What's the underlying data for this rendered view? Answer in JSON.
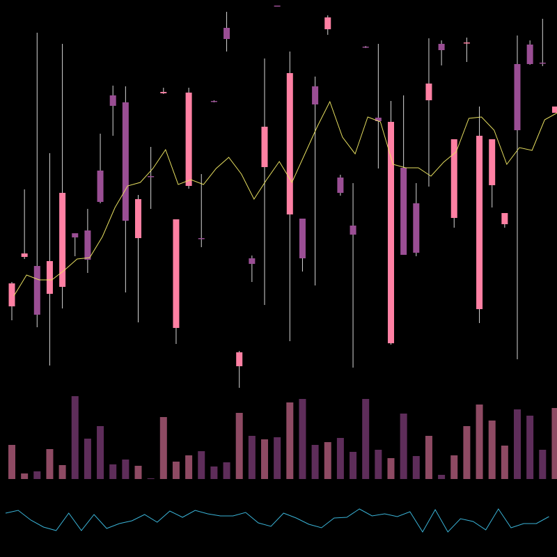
{
  "chart_data": {
    "type": "candlestick",
    "open": [
      360,
      431,
      418,
      378,
      388,
      465,
      469,
      555,
      663,
      653,
      458,
      547,
      666,
      329,
      533,
      458,
      655,
      760,
      274,
      429,
      560,
      792,
      492,
      486,
      676,
      758,
      545,
      476,
      733,
      631,
      307,
      559,
      508,
      656,
      737,
      487,
      738,
      356,
      534,
      478,
      708,
      736,
      710,
      638
    ],
    "high": [
      395,
      528,
      753,
      580,
      737,
      465,
      500,
      608,
      677,
      676,
      520,
      589,
      674,
      485,
      674,
      550,
      656,
      783,
      296,
      433,
      716,
      792,
      726,
      486,
      690,
      778,
      549,
      537,
      734,
      737,
      655,
      663,
      537,
      745,
      742,
      600,
      746,
      647,
      600,
      494,
      749,
      742,
      773,
      647
    ],
    "low": [
      340,
      428,
      330,
      275,
      357,
      432,
      408,
      508,
      605,
      380,
      337,
      500,
      665,
      306,
      529,
      445,
      653,
      726,
      243,
      395,
      362,
      791,
      310,
      410,
      390,
      750,
      519,
      272,
      731,
      558,
      305,
      434,
      432,
      532,
      706,
      473,
      711,
      336,
      502,
      473,
      284,
      707,
      705,
      638
    ],
    "close": [
      393,
      436,
      348,
      425,
      523,
      459,
      427,
      510,
      648,
      483,
      514,
      546,
      668,
      485,
      667,
      457,
      654,
      744,
      294,
      421,
      618,
      791,
      695,
      429,
      650,
      775,
      523,
      463,
      732,
      626,
      625,
      434,
      437,
      680,
      728,
      600,
      739,
      605,
      600,
      494,
      613,
      708,
      709,
      647
    ],
    "up_color": "#ff80a3",
    "down_color": "#9a4e94",
    "ylim": [
      0,
      800
    ],
    "ma": {
      "color": "#e8e060",
      "values": [
        375,
        405,
        398,
        398,
        412,
        428,
        430,
        460,
        502,
        533,
        538,
        558,
        585,
        535,
        542,
        535,
        558,
        574,
        550,
        514,
        542,
        568,
        538,
        578,
        618,
        654,
        603,
        579,
        632,
        625,
        564,
        559,
        559,
        547,
        567,
        582,
        630,
        632,
        613,
        564,
        588,
        584,
        628,
        638
      ]
    },
    "volume": {
      "values": [
        49,
        8,
        11,
        43,
        20,
        119,
        58,
        76,
        21,
        28,
        19,
        1,
        89,
        25,
        34,
        40,
        18,
        24,
        95,
        62,
        57,
        60,
        110,
        115,
        49,
        53,
        59,
        39,
        115,
        42,
        30,
        94,
        33,
        62,
        6,
        34,
        76,
        107,
        84,
        48,
        100,
        91,
        42,
        102
      ],
      "ylim": [
        0,
        120
      ],
      "up_color": "#8e4a63",
      "down_color": "#5e2d5a"
    },
    "indicator": {
      "color": "#3ab4d8",
      "values": [
        63,
        67,
        53,
        43,
        38,
        63,
        38,
        61,
        41,
        48,
        52,
        61,
        50,
        66,
        57,
        67,
        62,
        59,
        59,
        64,
        49,
        44,
        63,
        56,
        47,
        42,
        56,
        57,
        69,
        59,
        62,
        58,
        65,
        36,
        68,
        36,
        55,
        51,
        39,
        69,
        42,
        48,
        48,
        58
      ],
      "ylim": [
        0,
        100
      ]
    }
  }
}
